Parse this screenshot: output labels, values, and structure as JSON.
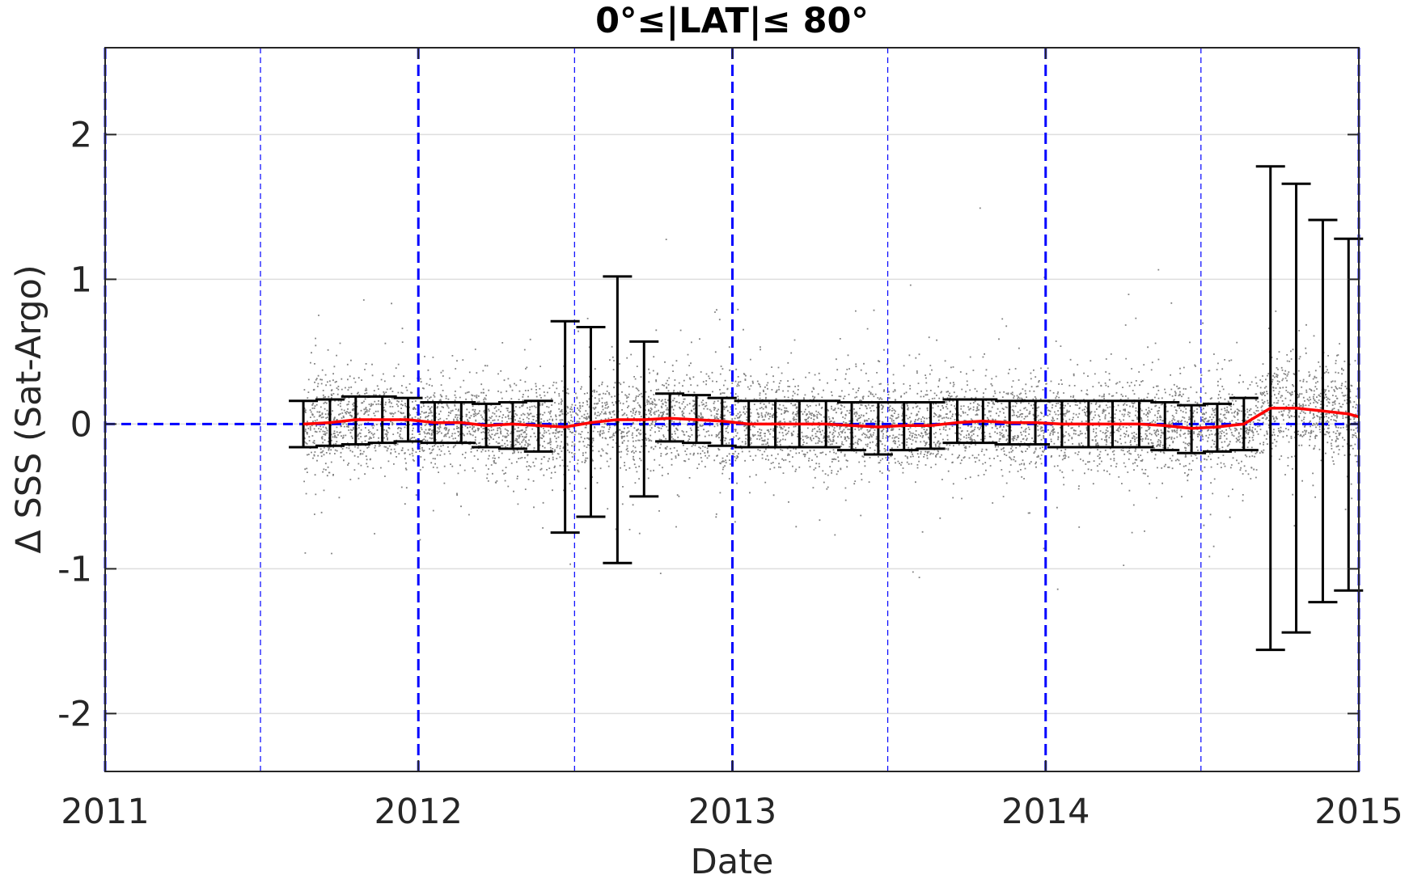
{
  "chart_data": {
    "type": "scatter",
    "title": "0°≤|LAT|≤ 80°",
    "xlabel": "Date",
    "ylabel": "Δ SSS (Sat-Argo)",
    "xlim": [
      "2011-01-01",
      "2015-01-01"
    ],
    "ylim": [
      -2.4,
      2.6
    ],
    "x_ticks": [
      "2011",
      "2012",
      "2013",
      "2014",
      "2015"
    ],
    "y_ticks": [
      "-2",
      "-1",
      "0",
      "1",
      "2"
    ],
    "y_tick_values": [
      -2,
      -1,
      0,
      1,
      2
    ],
    "grid": true,
    "reference_lines": {
      "color": "#0000ff",
      "y_zero": 0,
      "year_boundaries": [
        "2011-01-01",
        "2012-01-01",
        "2013-01-01",
        "2014-01-01",
        "2015-01-01"
      ],
      "half_years": [
        "2011-07-01",
        "2012-07-01",
        "2013-07-01",
        "2014-07-01"
      ]
    },
    "scatter_cloud": {
      "color": "#808080",
      "x_range": [
        "2011-08-20",
        "2015-01-01"
      ],
      "typical_spread": 0.25,
      "extremes": {
        "max": 1.99,
        "min": -1.37
      }
    },
    "series": [
      {
        "type": "errorbar",
        "color": "#000000",
        "points": [
          {
            "x": "2011-08-20",
            "mean": 0.0,
            "lo": -0.16,
            "hi": 0.16
          },
          {
            "x": "2011-09-20",
            "mean": 0.01,
            "lo": -0.15,
            "hi": 0.17
          },
          {
            "x": "2011-10-20",
            "mean": 0.03,
            "lo": -0.14,
            "hi": 0.19
          },
          {
            "x": "2011-11-20",
            "mean": 0.03,
            "lo": -0.13,
            "hi": 0.19
          },
          {
            "x": "2011-12-20",
            "mean": 0.03,
            "lo": -0.12,
            "hi": 0.18
          },
          {
            "x": "2012-01-20",
            "mean": 0.01,
            "lo": -0.13,
            "hi": 0.15
          },
          {
            "x": "2012-02-20",
            "mean": 0.01,
            "lo": -0.13,
            "hi": 0.15
          },
          {
            "x": "2012-03-20",
            "mean": -0.01,
            "lo": -0.16,
            "hi": 0.14
          },
          {
            "x": "2012-04-20",
            "mean": 0.0,
            "lo": -0.17,
            "hi": 0.15
          },
          {
            "x": "2012-05-20",
            "mean": -0.01,
            "lo": -0.19,
            "hi": 0.16
          },
          {
            "x": "2012-06-20",
            "mean": -0.02,
            "lo": -0.75,
            "hi": 0.71
          },
          {
            "x": "2012-07-20",
            "mean": 0.01,
            "lo": -0.64,
            "hi": 0.67
          },
          {
            "x": "2012-08-20",
            "mean": 0.03,
            "lo": -0.96,
            "hi": 1.02
          },
          {
            "x": "2012-09-20",
            "mean": 0.03,
            "lo": -0.5,
            "hi": 0.57
          },
          {
            "x": "2012-10-20",
            "mean": 0.04,
            "lo": -0.12,
            "hi": 0.21
          },
          {
            "x": "2012-11-20",
            "mean": 0.03,
            "lo": -0.13,
            "hi": 0.2
          },
          {
            "x": "2012-12-20",
            "mean": 0.02,
            "lo": -0.15,
            "hi": 0.18
          },
          {
            "x": "2013-01-20",
            "mean": 0.0,
            "lo": -0.16,
            "hi": 0.16
          },
          {
            "x": "2013-02-20",
            "mean": 0.0,
            "lo": -0.16,
            "hi": 0.16
          },
          {
            "x": "2013-03-20",
            "mean": 0.0,
            "lo": -0.16,
            "hi": 0.16
          },
          {
            "x": "2013-04-20",
            "mean": 0.0,
            "lo": -0.16,
            "hi": 0.16
          },
          {
            "x": "2013-05-20",
            "mean": -0.01,
            "lo": -0.18,
            "hi": 0.15
          },
          {
            "x": "2013-06-20",
            "mean": -0.02,
            "lo": -0.21,
            "hi": 0.15
          },
          {
            "x": "2013-07-20",
            "mean": -0.01,
            "lo": -0.18,
            "hi": 0.15
          },
          {
            "x": "2013-08-20",
            "mean": -0.01,
            "lo": -0.17,
            "hi": 0.15
          },
          {
            "x": "2013-09-20",
            "mean": 0.01,
            "lo": -0.13,
            "hi": 0.17
          },
          {
            "x": "2013-10-20",
            "mean": 0.02,
            "lo": -0.13,
            "hi": 0.17
          },
          {
            "x": "2013-11-20",
            "mean": 0.01,
            "lo": -0.14,
            "hi": 0.16
          },
          {
            "x": "2013-12-20",
            "mean": 0.01,
            "lo": -0.14,
            "hi": 0.16
          },
          {
            "x": "2014-01-20",
            "mean": 0.0,
            "lo": -0.16,
            "hi": 0.16
          },
          {
            "x": "2014-02-20",
            "mean": 0.0,
            "lo": -0.16,
            "hi": 0.16
          },
          {
            "x": "2014-03-20",
            "mean": 0.0,
            "lo": -0.16,
            "hi": 0.16
          },
          {
            "x": "2014-04-20",
            "mean": 0.0,
            "lo": -0.16,
            "hi": 0.16
          },
          {
            "x": "2014-05-20",
            "mean": -0.01,
            "lo": -0.18,
            "hi": 0.15
          },
          {
            "x": "2014-06-20",
            "mean": -0.03,
            "lo": -0.2,
            "hi": 0.13
          },
          {
            "x": "2014-07-20",
            "mean": -0.02,
            "lo": -0.19,
            "hi": 0.14
          },
          {
            "x": "2014-08-20",
            "mean": 0.0,
            "lo": -0.18,
            "hi": 0.18
          },
          {
            "x": "2014-09-20",
            "mean": 0.11,
            "lo": -1.56,
            "hi": 1.78
          },
          {
            "x": "2014-10-20",
            "mean": 0.11,
            "lo": -1.44,
            "hi": 1.66
          },
          {
            "x": "2014-11-20",
            "mean": 0.09,
            "lo": -1.23,
            "hi": 1.41
          },
          {
            "x": "2014-12-20",
            "mean": 0.07,
            "lo": -1.15,
            "hi": 1.28
          }
        ]
      },
      {
        "type": "line",
        "color": "#ff0000",
        "description_from": "errorbar means",
        "end": {
          "x": "2015-01-01",
          "y": 0.05
        }
      }
    ]
  }
}
